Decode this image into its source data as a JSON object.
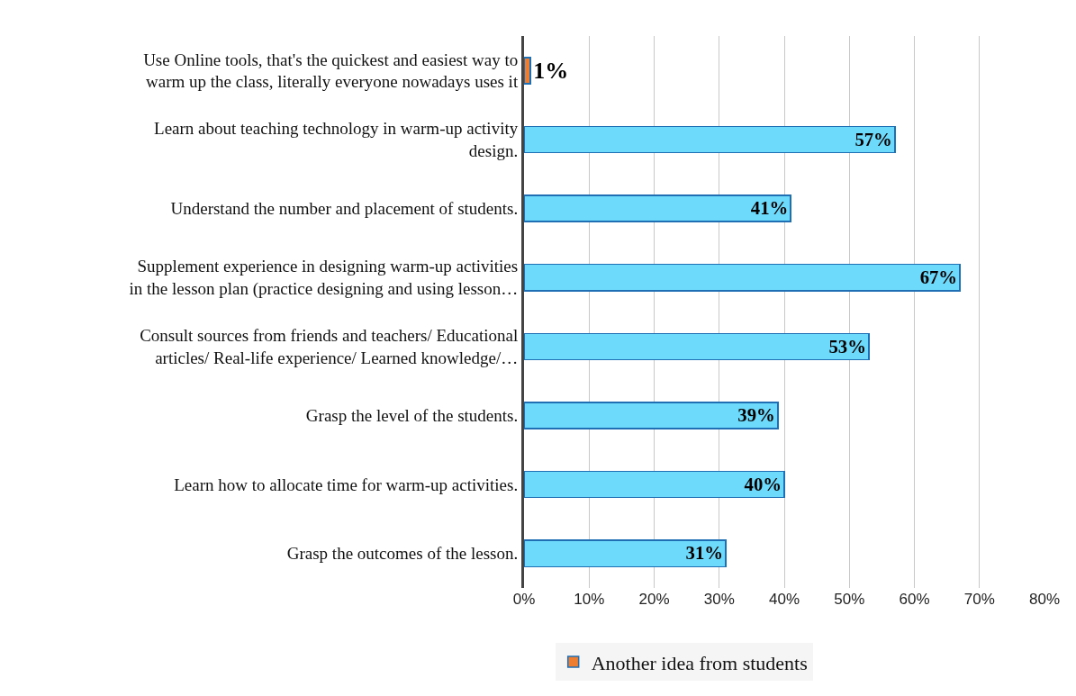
{
  "chart_data": {
    "type": "bar",
    "orientation": "horizontal",
    "stacked": true,
    "categories": [
      "Use Online tools, that's the quickest and easiest way to\nwarm up the class, literally everyone nowadays uses it",
      "Learn about teaching technology in warm-up activity\ndesign.",
      "Understand the number and placement of students.",
      "Supplement experience in designing warm-up activities\nin the lesson plan (practice designing and using lesson…",
      "Consult sources from friends and teachers/ Educational\narticles/ Real-life experience/ Learned knowledge/…",
      "Grasp the level of the students.",
      "Learn how to allocate time for warm-up activities.",
      "Grasp the outcomes of the lesson."
    ],
    "series": [
      {
        "name": "Another idea from students",
        "color": "#ed7d31",
        "values": [
          1,
          null,
          null,
          null,
          null,
          null,
          null,
          null
        ],
        "value_labels": [
          "1%",
          null,
          null,
          null,
          null,
          null,
          null,
          null
        ]
      },
      {
        "color": "#6dd9fb",
        "values": [
          null,
          57,
          41,
          67,
          53,
          39,
          40,
          31
        ],
        "value_labels": [
          null,
          "57%",
          "41%",
          "67%",
          "53%",
          "39%",
          "40%",
          "31%"
        ]
      }
    ],
    "xlim": [
      0,
      80
    ],
    "xticks": [
      {
        "value": 0,
        "label": "0%"
      },
      {
        "value": 10,
        "label": "10%"
      },
      {
        "value": 20,
        "label": "20%"
      },
      {
        "value": 30,
        "label": "30%"
      },
      {
        "value": 40,
        "label": "40%"
      },
      {
        "value": 50,
        "label": "50%"
      },
      {
        "value": 60,
        "label": "60%"
      },
      {
        "value": 70,
        "label": "70%"
      },
      {
        "value": 80,
        "label": "80%"
      }
    ],
    "grid": "x",
    "legend": "bottom"
  }
}
